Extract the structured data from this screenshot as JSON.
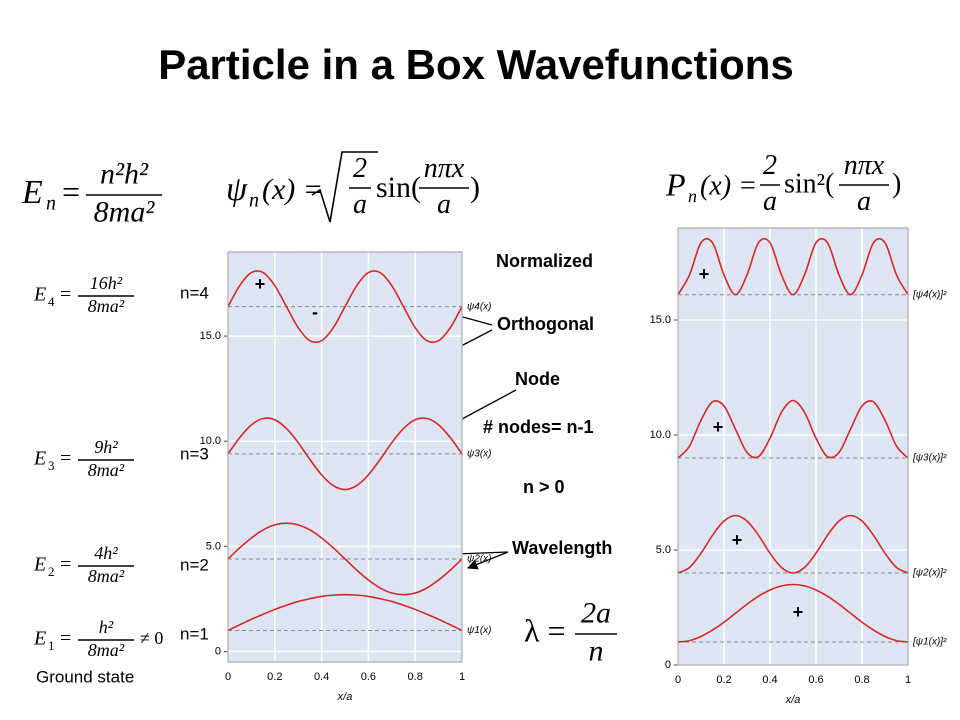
{
  "title": "Particle in a Box Wavefunctions",
  "energy_formula": {
    "lhs": "E",
    "sub": "n",
    "eq": "=",
    "num": "n²h²",
    "den": "8ma²"
  },
  "psi_formula": {
    "lhs": "ψ",
    "sub": "n",
    "arg": "(x) =",
    "root_num": "2",
    "root_den": "a",
    "func": "sin(",
    "frac_num": "nπx",
    "frac_den": "a",
    "close": ")"
  },
  "p_formula": {
    "lhs": "P",
    "sub": "n",
    "arg": "(x) =",
    "coef_num": "2",
    "coef_den": "a",
    "func": "sin²(",
    "frac_num": "nπx",
    "frac_den": "a",
    "close": ")"
  },
  "level_formulas": [
    {
      "lhs": "E",
      "sub": "4",
      "eq": "=",
      "num": "16h²",
      "den": "8ma²"
    },
    {
      "lhs": "E",
      "sub": "3",
      "eq": "=",
      "num": "9h²",
      "den": "8ma²"
    },
    {
      "lhs": "E",
      "sub": "2",
      "eq": "=",
      "num": "4h²",
      "den": "8ma²"
    },
    {
      "lhs": "E",
      "sub": "1",
      "eq": "=",
      "num": "h²",
      "den": "8ma²",
      "tail": "≠ 0"
    }
  ],
  "level_labels": [
    "n=4",
    "n=3",
    "n=2",
    "n=1"
  ],
  "ground_state": "Ground state",
  "annotations": {
    "normalized": "Normalized",
    "orthogonal": "Orthogonal",
    "node": "Node",
    "nodes": "# nodes= n-1",
    "n_positive": "n > 0",
    "wavelength": "Wavelength"
  },
  "wavelength_formula": {
    "lhs": "λ =",
    "num": "2a",
    "den": "n"
  },
  "signs": {
    "left": [
      "+",
      "-"
    ],
    "right": [
      "+",
      "+",
      "+",
      "+"
    ]
  },
  "chart_data": [
    {
      "type": "line",
      "xlabel": "x/a",
      "xlim": [
        0,
        1
      ],
      "xticks": [
        0,
        0.2,
        0.4,
        0.6,
        0.8,
        1
      ],
      "ylim": [
        -0.5,
        19
      ],
      "yticks": [
        0,
        {
          "value": 5,
          "label": "5.0"
        },
        {
          "value": 10,
          "label": "10.0"
        },
        {
          "value": 15,
          "label": "15.0"
        }
      ],
      "grid": true,
      "background": "#dde5f3",
      "levels": [
        16.4,
        9.4,
        4.4,
        1.0
      ],
      "x": [
        0,
        0.05,
        0.1,
        0.15,
        0.2,
        0.25,
        0.3,
        0.35,
        0.4,
        0.45,
        0.5,
        0.55,
        0.6,
        0.65,
        0.7,
        0.75,
        0.8,
        0.85,
        0.9,
        0.95,
        1
      ],
      "series": [
        {
          "name": "ψ4(x)",
          "color": "#d62728",
          "values": [
            16.4,
            17.4,
            18.02,
            18.02,
            17.4,
            16.4,
            15.4,
            14.78,
            14.78,
            15.4,
            16.4,
            17.4,
            18.02,
            18.02,
            17.4,
            16.4,
            15.4,
            14.78,
            14.78,
            15.4,
            16.4
          ]
        },
        {
          "name": "ψ3(x)",
          "color": "#d62728",
          "values": [
            9.4,
            10.17,
            10.78,
            11.08,
            11.02,
            10.6,
            9.93,
            9.13,
            8.4,
            7.89,
            7.7,
            7.89,
            8.4,
            9.13,
            9.93,
            10.6,
            11.02,
            11.08,
            10.78,
            10.17,
            9.4
          ]
        },
        {
          "name": "ψ2(x)",
          "color": "#d62728",
          "values": [
            4.4,
            4.93,
            5.4,
            5.78,
            6.02,
            6.1,
            6.02,
            5.78,
            5.4,
            4.93,
            4.4,
            3.87,
            3.4,
            3.02,
            2.78,
            2.7,
            2.78,
            3.02,
            3.4,
            3.87,
            4.4
          ]
        },
        {
          "name": "ψ1(x)",
          "color": "#d62728",
          "values": [
            1.0,
            1.27,
            1.53,
            1.77,
            2.0,
            2.2,
            2.38,
            2.51,
            2.62,
            2.68,
            2.7,
            2.68,
            2.62,
            2.51,
            2.38,
            2.2,
            2.0,
            1.77,
            1.53,
            1.27,
            1.0
          ]
        }
      ]
    },
    {
      "type": "line",
      "xlabel": "x/a",
      "xlim": [
        0,
        1
      ],
      "xticks": [
        0,
        0.2,
        0.4,
        0.6,
        0.8,
        1
      ],
      "ylim": [
        0,
        19
      ],
      "yticks": [
        0,
        {
          "value": 5,
          "label": "5.0"
        },
        {
          "value": 10,
          "label": "10.0"
        },
        {
          "value": 15,
          "label": "15.0"
        }
      ],
      "grid": true,
      "background": "#dde5f3",
      "levels": [
        16.1,
        9.0,
        4.0,
        1.0
      ],
      "x": [
        0,
        0.05,
        0.1,
        0.15,
        0.2,
        0.25,
        0.3,
        0.35,
        0.4,
        0.45,
        0.5,
        0.55,
        0.6,
        0.65,
        0.7,
        0.75,
        0.8,
        0.85,
        0.9,
        0.95,
        1
      ],
      "series": [
        {
          "name": "[ψ4(x)]²",
          "color": "#d62728",
          "values": [
            16.1,
            16.96,
            18.36,
            18.36,
            16.96,
            16.1,
            16.96,
            18.36,
            18.36,
            16.96,
            16.1,
            16.96,
            18.36,
            18.36,
            16.96,
            16.1,
            16.96,
            18.36,
            18.36,
            16.96,
            16.1
          ]
        },
        {
          "name": "[ψ3(x)]²",
          "color": "#d62728",
          "values": [
            9.0,
            9.52,
            10.64,
            11.44,
            11.26,
            10.25,
            9.24,
            9.06,
            9.86,
            10.99,
            11.5,
            10.99,
            9.86,
            9.06,
            9.24,
            10.25,
            11.26,
            11.44,
            10.64,
            9.52,
            9.0
          ]
        },
        {
          "name": "[ψ2(x)]²",
          "color": "#d62728",
          "values": [
            4.0,
            4.24,
            4.86,
            5.64,
            6.26,
            6.5,
            6.26,
            5.64,
            4.86,
            4.24,
            4.0,
            4.24,
            4.86,
            5.64,
            6.26,
            6.5,
            6.26,
            5.64,
            4.86,
            4.24,
            4.0
          ]
        },
        {
          "name": "[ψ1(x)]²",
          "color": "#d62728",
          "values": [
            1.0,
            1.06,
            1.24,
            1.52,
            1.86,
            2.25,
            2.64,
            2.99,
            3.26,
            3.44,
            3.5,
            3.44,
            3.26,
            2.99,
            2.64,
            2.25,
            1.86,
            1.52,
            1.24,
            1.06,
            1.0
          ]
        }
      ]
    }
  ]
}
